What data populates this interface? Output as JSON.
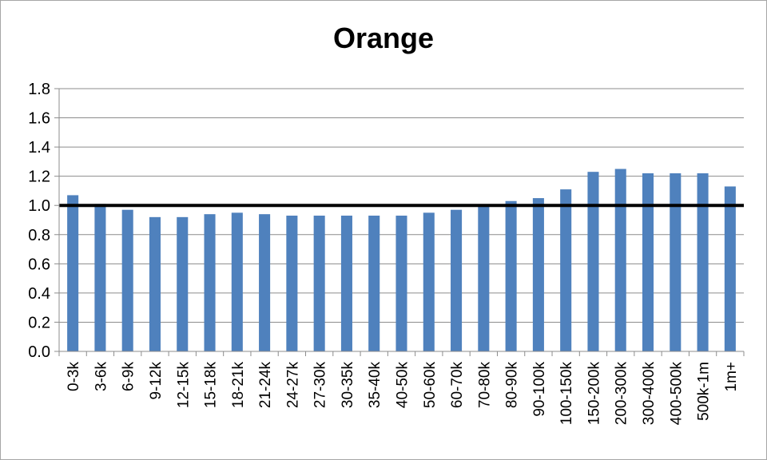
{
  "chart_data": {
    "type": "bar",
    "title": "Orange",
    "xlabel": "",
    "ylabel": "",
    "ylim": [
      0,
      1.8
    ],
    "yticks": [
      "0.0",
      "0.2",
      "0.4",
      "0.6",
      "0.8",
      "1.0",
      "1.2",
      "1.4",
      "1.6",
      "1.8"
    ],
    "grid": true,
    "legend": "none",
    "bar_color": "#4f81bd",
    "reference_line": {
      "y": 1.0,
      "color": "#000000"
    },
    "categories": [
      "0-3k",
      "3-6k",
      "6-9k",
      "9-12k",
      "12-15k",
      "15-18k",
      "18-21k",
      "21-24k",
      "24-27k",
      "27-30k",
      "30-35k",
      "35-40k",
      "40-50k",
      "50-60k",
      "60-70k",
      "70-80k",
      "80-90k",
      "90-100k",
      "100-150k",
      "150-200k",
      "200-300k",
      "300-400k",
      "400-500k",
      "500k-1m",
      "1m+"
    ],
    "values": [
      1.07,
      1.01,
      0.97,
      0.92,
      0.92,
      0.94,
      0.95,
      0.94,
      0.93,
      0.93,
      0.93,
      0.93,
      0.93,
      0.95,
      0.97,
      1.0,
      1.03,
      1.05,
      1.11,
      1.23,
      1.25,
      1.22,
      1.22,
      1.22,
      1.13
    ]
  }
}
